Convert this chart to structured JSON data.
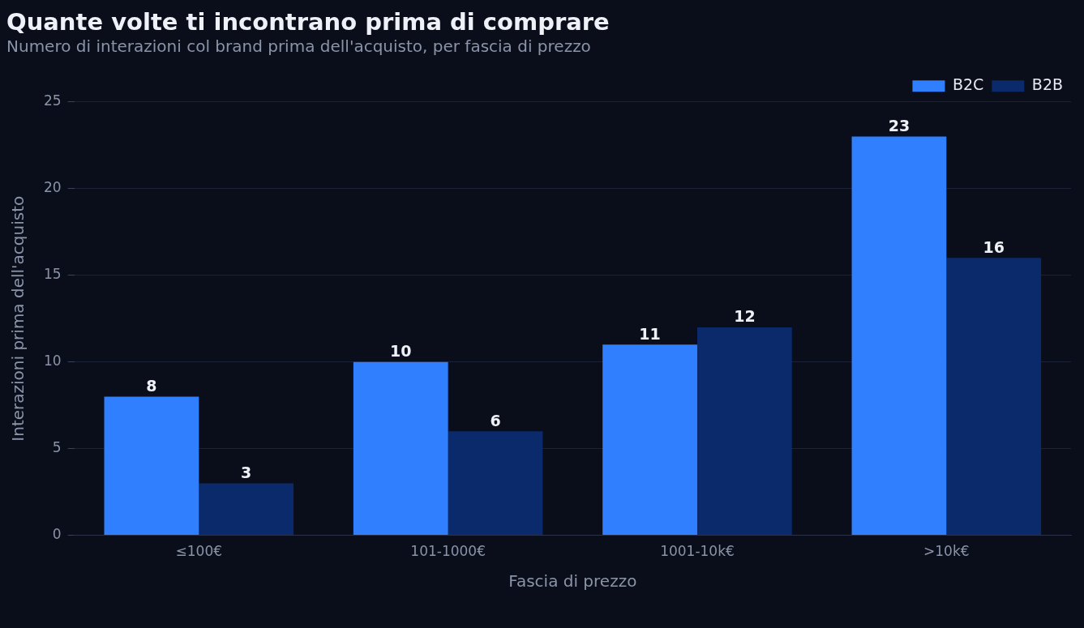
{
  "chart_data": {
    "type": "bar",
    "title": "Quante volte ti incontrano prima di comprare",
    "subtitle": "Numero di interazioni col brand prima dell'acquisto, per fascia di prezzo",
    "xlabel": "Fascia di prezzo",
    "ylabel": "Interazioni prima dell'acquisto",
    "categories": [
      "≤100€",
      "101-1000€",
      "1001-10k€",
      ">10k€"
    ],
    "series": [
      {
        "name": "B2C",
        "color": "#2f7fff",
        "values": [
          8,
          10,
          11,
          23
        ]
      },
      {
        "name": "B2B",
        "color": "#0b2a6b",
        "values": [
          3,
          6,
          12,
          16
        ]
      }
    ],
    "ylim": [
      0,
      25
    ],
    "yticks": [
      0,
      5,
      10,
      15,
      20,
      25
    ],
    "grid": "y",
    "legend": "top right",
    "data_labels": true
  }
}
